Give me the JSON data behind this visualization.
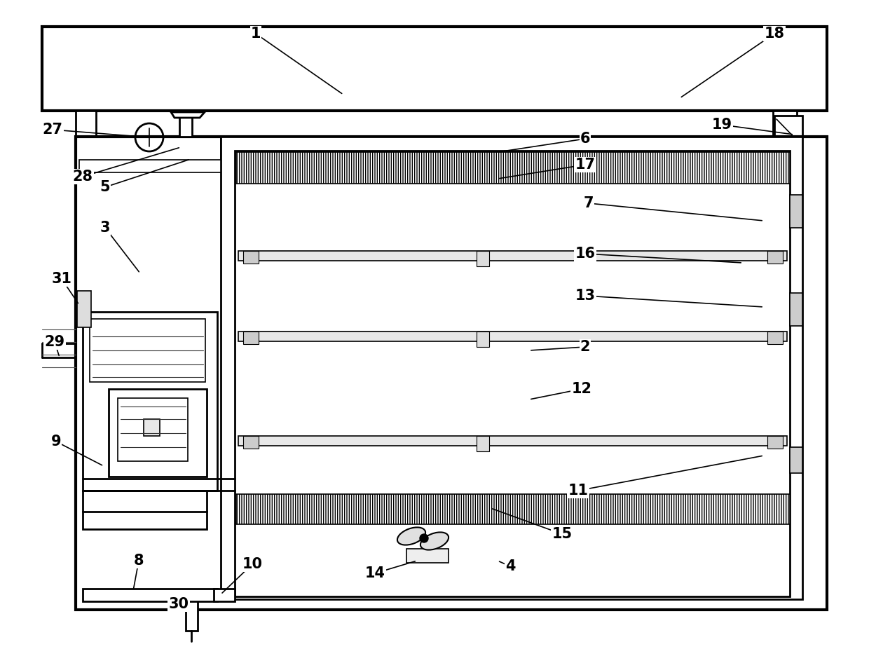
{
  "bg": "#ffffff",
  "lw1": 3.0,
  "lw2": 2.0,
  "lw3": 1.2,
  "lw4": 0.8,
  "fs": 15,
  "annotations": [
    [
      "1",
      365,
      48,
      490,
      135
    ],
    [
      "18",
      1105,
      48,
      970,
      140
    ],
    [
      "27",
      75,
      185,
      213,
      196
    ],
    [
      "28",
      118,
      252,
      258,
      210
    ],
    [
      "5",
      150,
      267,
      272,
      227
    ],
    [
      "3",
      150,
      325,
      200,
      390
    ],
    [
      "31",
      88,
      398,
      113,
      435
    ],
    [
      "29",
      78,
      488,
      85,
      510
    ],
    [
      "9",
      80,
      630,
      148,
      665
    ],
    [
      "8",
      198,
      800,
      190,
      843
    ],
    [
      "30",
      255,
      862,
      265,
      865
    ],
    [
      "10",
      360,
      805,
      315,
      848
    ],
    [
      "14",
      535,
      818,
      595,
      800
    ],
    [
      "4",
      728,
      808,
      710,
      800
    ],
    [
      "15",
      802,
      762,
      700,
      725
    ],
    [
      "11",
      825,
      700,
      1090,
      650
    ],
    [
      "12",
      830,
      555,
      755,
      570
    ],
    [
      "2",
      835,
      495,
      755,
      500
    ],
    [
      "13",
      835,
      422,
      1090,
      438
    ],
    [
      "16",
      835,
      362,
      1060,
      375
    ],
    [
      "7",
      840,
      290,
      1090,
      315
    ],
    [
      "17",
      835,
      235,
      710,
      255
    ],
    [
      "6",
      835,
      198,
      710,
      217
    ],
    [
      "19",
      1030,
      178,
      1133,
      192
    ]
  ]
}
